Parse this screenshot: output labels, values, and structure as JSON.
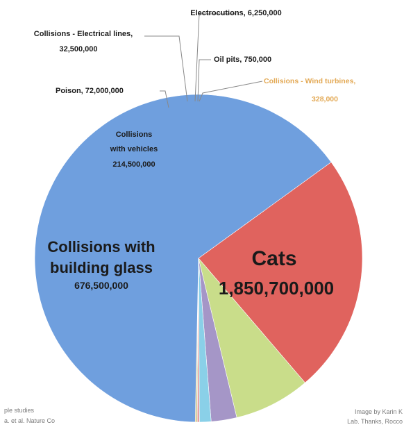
{
  "chart_data": {
    "type": "pie",
    "slices": [
      {
        "label": "Cats",
        "value": 1850700000,
        "value_text": "1,850,700,000",
        "color": "#6f9fde"
      },
      {
        "label": "Collisions with building glass",
        "value": 676500000,
        "value_text": "676,500,000",
        "color": "#e0635e"
      },
      {
        "label": "Collisions with vehicles",
        "value": 214500000,
        "value_text": "214,500,000",
        "color": "#c9dd8a"
      },
      {
        "label": "Poison",
        "value": 72000000,
        "value_text": "72,000,000",
        "color": "#a596c7"
      },
      {
        "label": "Collisions - Electrical lines",
        "value": 32500000,
        "value_text": "32,500,000",
        "color": "#8ad0e8"
      },
      {
        "label": "Electrocutions",
        "value": 6250000,
        "value_text": "6,250,000",
        "color": "#e5a0a0"
      },
      {
        "label": "Oil pits",
        "value": 750000,
        "value_text": "750,000",
        "color": "#9fbf6a"
      },
      {
        "label": "Collisions - Wind turbines",
        "value": 328000,
        "value_text": "328,000",
        "color": "#e7b36a"
      }
    ],
    "label_texts": {
      "cats_name": "Cats",
      "cats_value": "1,850,700,000",
      "glass_line1": "Collisions with",
      "glass_line2": "building glass",
      "glass_value": "676,500,000",
      "vehicles_line1": "Collisions",
      "vehicles_line2": "with vehicles",
      "vehicles_value": "214,500,000",
      "poison": "Poison,  72,000,000",
      "electrical_line1": "Collisions - Electrical lines,",
      "electrical_line2": "32,500,000",
      "electrocutions": "Electrocutions,  6,250,000",
      "oilpits": "Oil pits,  750,000",
      "wind_line1": "Collisions - Wind turbines,",
      "wind_line2": "328,000"
    }
  },
  "credits": {
    "left_line1": "ple studies",
    "left_line2": "a. et al. Nature Co",
    "right_line1": "Image by Karin K",
    "right_line2": "Lab. Thanks, Rocco"
  }
}
